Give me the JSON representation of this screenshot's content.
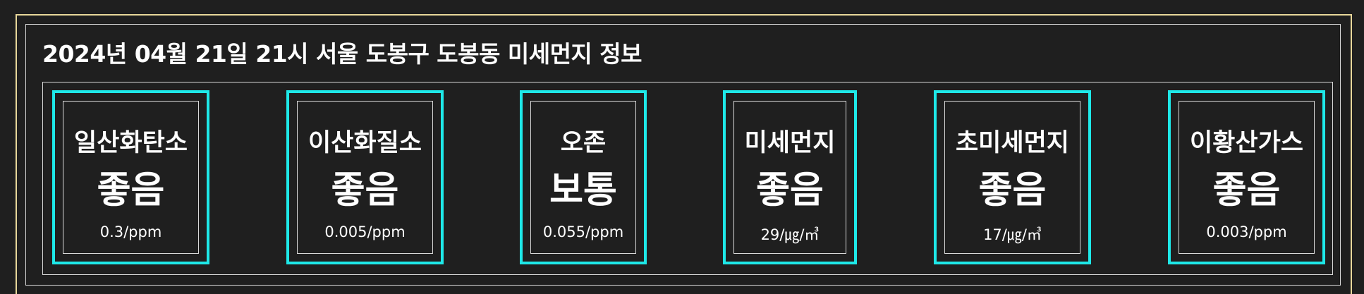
{
  "title": "2024년 04월 21일 21시 서울 도봉구 도봉동 미세먼지 정보",
  "colors": {
    "background": "#1f1f1f",
    "gold_border": "#e8d79a",
    "card_border": "#1ee8e8",
    "inner_border": "#d9d9d9",
    "text": "#ffffff"
  },
  "cards": [
    {
      "label": "일산화탄소",
      "status": "좋음",
      "value": "0.3/ppm"
    },
    {
      "label": "이산화질소",
      "status": "좋음",
      "value": "0.005/ppm"
    },
    {
      "label": "오존",
      "status": "보통",
      "value": "0.055/ppm"
    },
    {
      "label": "미세먼지",
      "status": "좋음",
      "value": "29/㎍/㎥"
    },
    {
      "label": "초미세먼지",
      "status": "좋음",
      "value": "17/㎍/㎥"
    },
    {
      "label": "이황산가스",
      "status": "좋음",
      "value": "0.003/ppm"
    }
  ]
}
